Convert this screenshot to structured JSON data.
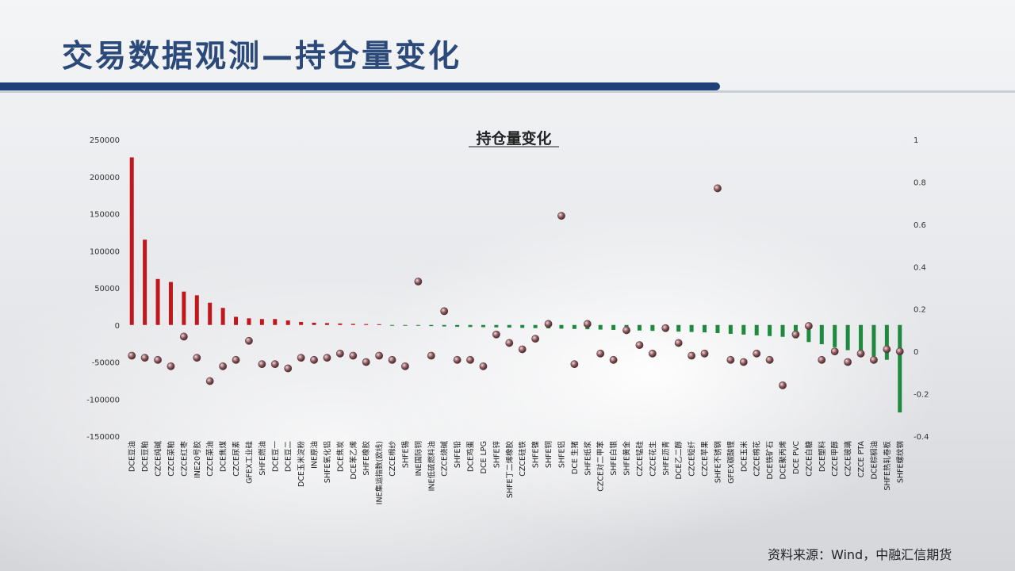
{
  "slide": {
    "title": "交易数据观测—持仓量变化",
    "source": "资料来源：Wind，中融汇信期货"
  },
  "colors": {
    "header_bar": "#1f3f78",
    "title_text": "#2b4a7a",
    "positive_bar": "#c0171c",
    "negative_bar": "#1f8a3f",
    "marker": "#8c5a5f"
  },
  "chart_data": {
    "type": "bar",
    "title": "持仓量变化",
    "legend": "none",
    "grid": false,
    "y_left": {
      "ylim": [
        -150000,
        250000
      ],
      "ticks": [
        250000,
        200000,
        150000,
        100000,
        50000,
        0,
        -50000,
        -100000,
        -150000
      ]
    },
    "y_right": {
      "ylim": [
        -0.4,
        1
      ],
      "ticks": [
        "1",
        "0.8",
        "0.6",
        "0.4",
        "0.2",
        "0",
        "-0.2",
        "-0.4"
      ]
    },
    "categories": [
      "DCE豆油",
      "DCE豆粕",
      "CZCE纯碱",
      "CZCE菜粕",
      "CZCE红枣",
      "INE20号胶",
      "CZCE菜油",
      "DCE焦煤",
      "CZCE尿素",
      "GFEX工业硅",
      "SHFE燃油",
      "DCE豆一",
      "DCE豆二",
      "DCE玉米淀粉",
      "INE原油",
      "SHFE氧化铝",
      "DCE焦炭",
      "DCE苯乙烯",
      "SHFE橡胶",
      "INE集运指数(欧线)",
      "CZCE棉纱",
      "SHFE锡",
      "INE国际铜",
      "INE低硫燃料油",
      "CZCE烧碱",
      "SHFE铅",
      "DCE鸡蛋",
      "DCE LPG",
      "SHFE锌",
      "SHFE丁二烯橡胶",
      "CZCE硅铁",
      "SHFE镍",
      "SHFE铜",
      "SHFE铝",
      "DCE 生猪",
      "SHFE纸浆",
      "CZCE对二甲苯",
      "SHFE白银",
      "SHFE黄金",
      "CZCE锰硅",
      "CZCE花生",
      "SHFE沥青",
      "DCE乙二醇",
      "CZCE短纤",
      "CZCE苹果",
      "SHFE不锈钢",
      "GFEX碳酸锂",
      "DCE玉米",
      "CZCE棉花",
      "DCE铁矿石",
      "DCE聚丙烯",
      "DCE PVC",
      "CZCE白糖",
      "DCE塑料",
      "CZCE甲醇",
      "CZCE玻璃",
      "CZCE PTA",
      "DCE棕榈油",
      "SHFE热轧卷板",
      "SHFE螺纹钢"
    ],
    "series": [
      {
        "values": [
          226000,
          115000,
          62000,
          58000,
          45000,
          40000,
          30000,
          23000,
          11000,
          9000,
          8000,
          8000,
          6000,
          4000,
          3000,
          2500,
          2000,
          1500,
          1200,
          1000,
          -500,
          -800,
          -1000,
          -1500,
          -2000,
          -2500,
          -2800,
          -3000,
          -3300,
          -3600,
          -4000,
          -4300,
          -4600,
          -5000,
          -5400,
          -5800,
          -6200,
          -6600,
          -7000,
          -7500,
          -8000,
          -8500,
          -9000,
          -9500,
          -10000,
          -11000,
          -12000,
          -13000,
          -14000,
          -15000,
          -16000,
          -18000,
          -23000,
          -26000,
          -30000,
          -34000,
          -38000,
          -42000,
          -47000,
          -118000
        ]
      },
      {
        "values": [
          -0.02,
          -0.03,
          -0.04,
          -0.07,
          0.07,
          -0.03,
          -0.14,
          -0.07,
          -0.04,
          0.05,
          -0.06,
          -0.06,
          -0.08,
          -0.03,
          -0.04,
          -0.03,
          -0.01,
          -0.02,
          -0.05,
          -0.02,
          -0.04,
          -0.07,
          0.33,
          -0.02,
          0.19,
          -0.04,
          -0.04,
          -0.07,
          0.08,
          0.04,
          0.01,
          0.06,
          0.13,
          0.64,
          -0.06,
          0.13,
          -0.01,
          -0.04,
          0.1,
          0.03,
          -0.01,
          0.11,
          0.04,
          -0.02,
          -0.01,
          0.77,
          -0.04,
          -0.05,
          -0.01,
          -0.04,
          -0.16,
          0.08,
          0.12,
          -0.04,
          0.0,
          -0.05,
          -0.01,
          -0.04,
          0.01,
          0.0
        ]
      }
    ]
  }
}
